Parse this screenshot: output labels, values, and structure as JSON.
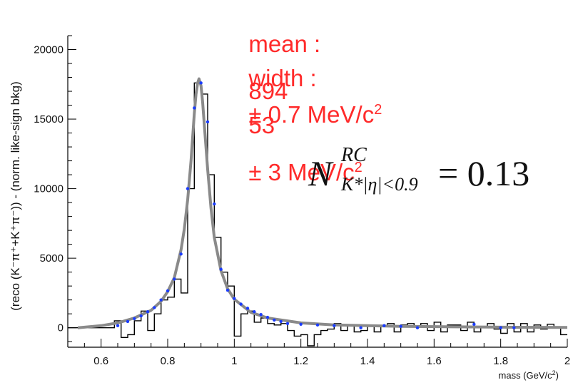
{
  "chart_data": {
    "type": "line",
    "title": "",
    "xlabel": "mass (GeV/c",
    "xlabel_sup": "2",
    "xlabel_end": ")",
    "ylabel": "(reco (K⁻π⁺+K⁺π⁻)) - (norm. like-sign bkg)",
    "xlim": [
      0.5,
      2.0
    ],
    "ylim": [
      -1400,
      21000
    ],
    "xticks": [
      0.6,
      0.8,
      1.0,
      1.2,
      1.4,
      1.6,
      1.8,
      2.0
    ],
    "xtick_labels": [
      "0.6",
      "0.8",
      "1",
      "1.2",
      "1.4",
      "1.6",
      "1.8",
      "2"
    ],
    "yticks": [
      0,
      5000,
      10000,
      15000,
      20000
    ],
    "ytick_labels": [
      "0",
      "5000",
      "10000",
      "15000",
      "20000"
    ],
    "grid": false,
    "series": [
      {
        "style": "step",
        "color": "#000000",
        "bin_width": 0.02,
        "x": [
          0.5,
          0.52,
          0.54,
          0.56,
          0.58,
          0.6,
          0.62,
          0.64,
          0.66,
          0.68,
          0.7,
          0.72,
          0.74,
          0.76,
          0.78,
          0.8,
          0.82,
          0.84,
          0.86,
          0.88,
          0.9,
          0.92,
          0.94,
          0.96,
          0.98,
          1.0,
          1.02,
          1.04,
          1.06,
          1.08,
          1.1,
          1.12,
          1.14,
          1.16,
          1.18,
          1.2,
          1.22,
          1.24,
          1.26,
          1.28,
          1.3,
          1.32,
          1.34,
          1.36,
          1.38,
          1.4,
          1.42,
          1.44,
          1.46,
          1.48,
          1.5,
          1.52,
          1.54,
          1.56,
          1.58,
          1.6,
          1.62,
          1.64,
          1.66,
          1.68,
          1.7,
          1.72,
          1.74,
          1.76,
          1.78,
          1.8,
          1.82,
          1.84,
          1.86,
          1.88,
          1.9,
          1.92,
          1.94,
          1.96,
          1.98
        ],
        "values": [
          0,
          0,
          0,
          0,
          0,
          0,
          0,
          500,
          -700,
          -500,
          500,
          1200,
          -200,
          1000,
          2000,
          2200,
          3500,
          2500,
          10000,
          17600,
          16800,
          11000,
          6500,
          4000,
          3000,
          -600,
          1000,
          1200,
          400,
          700,
          300,
          200,
          300,
          -200,
          -600,
          -500,
          -1300,
          -500,
          -200,
          -100,
          300,
          -200,
          200,
          -300,
          -200,
          200,
          -300,
          100,
          300,
          -300,
          200,
          300,
          100,
          300,
          -200,
          400,
          -300,
          200,
          200,
          -200,
          400,
          -300,
          0,
          300,
          -100,
          -400,
          300,
          -300,
          300,
          -300,
          200,
          -100,
          250,
          50,
          -500
        ]
      },
      {
        "style": "line",
        "color": "#8a8a8a",
        "x": [
          0.53,
          0.6,
          0.65,
          0.7,
          0.75,
          0.78,
          0.8,
          0.82,
          0.84,
          0.85,
          0.86,
          0.87,
          0.875,
          0.88,
          0.885,
          0.89,
          0.894,
          0.9,
          0.905,
          0.91,
          0.92,
          0.93,
          0.94,
          0.96,
          0.98,
          1.0,
          1.05,
          1.1,
          1.2,
          1.3,
          1.4,
          1.5,
          1.6,
          1.7,
          1.8,
          1.9,
          2.0
        ],
        "values": [
          0,
          150,
          350,
          700,
          1250,
          1900,
          2600,
          3600,
          5600,
          7100,
          9200,
          12000,
          13700,
          15400,
          16800,
          17600,
          17900,
          17400,
          16200,
          14600,
          11400,
          8600,
          6500,
          4100,
          2800,
          2050,
          1100,
          700,
          350,
          200,
          150,
          100,
          80,
          60,
          40,
          30,
          20
        ]
      },
      {
        "style": "points",
        "color": "#1a3cff",
        "x": [
          0.65,
          0.68,
          0.7,
          0.72,
          0.74,
          0.76,
          0.78,
          0.8,
          0.82,
          0.84,
          0.86,
          0.88,
          0.9,
          0.92,
          0.94,
          0.96,
          0.98,
          1.0,
          1.02,
          1.04,
          1.06,
          1.08,
          1.1,
          1.12,
          1.14,
          1.16,
          1.2,
          1.25,
          1.3,
          1.38,
          1.45,
          1.5,
          1.55,
          1.72,
          1.8,
          1.84
        ],
        "values": [
          150,
          450,
          650,
          850,
          1150,
          1450,
          2000,
          2650,
          3500,
          5300,
          10000,
          15800,
          17600,
          14800,
          8900,
          4200,
          2700,
          2100,
          1700,
          1400,
          1150,
          950,
          750,
          550,
          450,
          300,
          250,
          200,
          150,
          0,
          150,
          100,
          0,
          250,
          0,
          0
        ]
      }
    ],
    "annotations": {
      "mean_label": "mean :",
      "mean_value": "894",
      "mean_pm": "± 0.7 MeV/c",
      "mean_sup": "2",
      "width_label": "width :",
      "width_value": "53",
      "width_pm": "± 3 MeV/c",
      "width_sup": "2",
      "n_symbol": "N",
      "n_sup": "RC",
      "n_sub": "K*|η|<0.9",
      "n_equals": "= 0.13"
    }
  }
}
